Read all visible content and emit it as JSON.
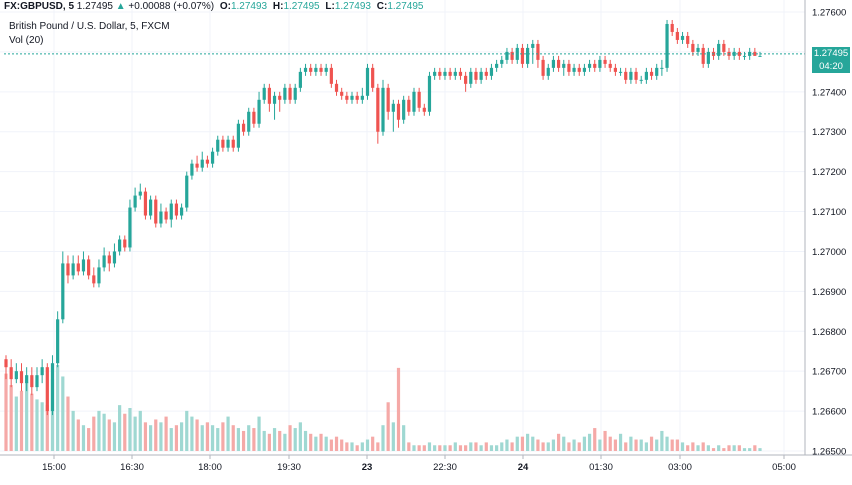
{
  "header": {
    "symbol": "FX:GBPUSD, 5",
    "last": "1.27495",
    "change_arrow": "▲",
    "change": "+0.00088 (+0.07%)",
    "o_label": "O:",
    "o_value": "1.27493",
    "h_label": "H:",
    "h_value": "1.27495",
    "l_label": "L:",
    "l_value": "1.27493",
    "c_label": "C:",
    "c_value": "1.27495"
  },
  "legend": {
    "title": "British Pound / U.S. Dollar, 5, FXCM",
    "volume": "Vol (20)"
  },
  "price_scale": {
    "last_price_label": "1.27495",
    "countdown_label": "04:20"
  },
  "colors": {
    "up": "#26a69a",
    "down": "#ef5350",
    "vol_up": "#9fd8d2",
    "vol_down": "#f5a9a7"
  },
  "chart_data": {
    "type": "candlestick",
    "y_range": [
      1.265,
      1.276
    ],
    "y_ticks": [
      "1.27600",
      "1.27500",
      "1.27400",
      "1.27300",
      "1.27200",
      "1.27100",
      "1.27000",
      "1.26900",
      "1.26800",
      "1.26700",
      "1.26600",
      "1.26500"
    ],
    "x_ticks": [
      "15:00",
      "16:30",
      "18:00",
      "19:30",
      "23",
      "22:30",
      "24",
      "01:30",
      "03:00",
      "05:00"
    ],
    "last_price": 1.27495,
    "interval": "5",
    "candles": [
      [
        1.2673,
        1.2671,
        1.2674,
        1.2668
      ],
      [
        1.2671,
        1.2668,
        1.2673,
        1.2666
      ],
      [
        1.2668,
        1.267,
        1.2672,
        1.2667
      ],
      [
        1.267,
        1.2667,
        1.2672,
        1.2665
      ],
      [
        1.2667,
        1.2669,
        1.2671,
        1.2665
      ],
      [
        1.2669,
        1.2666,
        1.2671,
        1.2664
      ],
      [
        1.2666,
        1.2669,
        1.2671,
        1.2665
      ],
      [
        1.2669,
        1.2671,
        1.2673,
        1.2667
      ],
      [
        1.2671,
        1.266,
        1.2672,
        1.2659
      ],
      [
        1.266,
        1.2672,
        1.2674,
        1.2659
      ],
      [
        1.2672,
        1.2683,
        1.2685,
        1.2671
      ],
      [
        1.2683,
        1.2697,
        1.27,
        1.2682
      ],
      [
        1.2697,
        1.2694,
        1.2699,
        1.2692
      ],
      [
        1.2694,
        1.2697,
        1.2699,
        1.2693
      ],
      [
        1.2697,
        1.2695,
        1.2699,
        1.2694
      ],
      [
        1.2695,
        1.2698,
        1.27,
        1.2694
      ],
      [
        1.2698,
        1.2694,
        1.2699,
        1.2693
      ],
      [
        1.2694,
        1.2692,
        1.2696,
        1.2691
      ],
      [
        1.2692,
        1.2696,
        1.2698,
        1.2691
      ],
      [
        1.2696,
        1.2699,
        1.2701,
        1.2695
      ],
      [
        1.2699,
        1.2697,
        1.27,
        1.2695
      ],
      [
        1.2697,
        1.27,
        1.2702,
        1.2696
      ],
      [
        1.27,
        1.2703,
        1.2704,
        1.2699
      ],
      [
        1.2703,
        1.2701,
        1.2704,
        1.27
      ],
      [
        1.2701,
        1.2711,
        1.2713,
        1.27
      ],
      [
        1.2711,
        1.2714,
        1.2716,
        1.271
      ],
      [
        1.2714,
        1.2715,
        1.2717,
        1.2713
      ],
      [
        1.2715,
        1.2709,
        1.2716,
        1.2708
      ],
      [
        1.2709,
        1.2713,
        1.2714,
        1.2708
      ],
      [
        1.2713,
        1.2707,
        1.2714,
        1.2706
      ],
      [
        1.2707,
        1.271,
        1.2712,
        1.2706
      ],
      [
        1.271,
        1.2708,
        1.2711,
        1.2707
      ],
      [
        1.2708,
        1.2712,
        1.2713,
        1.2706
      ],
      [
        1.2712,
        1.2709,
        1.2713,
        1.2708
      ],
      [
        1.2709,
        1.2711,
        1.2712,
        1.2708
      ],
      [
        1.2711,
        1.2719,
        1.272,
        1.271
      ],
      [
        1.2719,
        1.2722,
        1.2723,
        1.2718
      ],
      [
        1.2722,
        1.2721,
        1.2724,
        1.272
      ],
      [
        1.2721,
        1.2723,
        1.2725,
        1.272
      ],
      [
        1.2723,
        1.2722,
        1.2724,
        1.2721
      ],
      [
        1.2722,
        1.2725,
        1.2726,
        1.2721
      ],
      [
        1.2725,
        1.2728,
        1.2729,
        1.2724
      ],
      [
        1.2728,
        1.2726,
        1.2729,
        1.2725
      ],
      [
        1.2726,
        1.2728,
        1.2729,
        1.2725
      ],
      [
        1.2728,
        1.2726,
        1.2729,
        1.2725
      ],
      [
        1.2726,
        1.2732,
        1.2733,
        1.2725
      ],
      [
        1.2732,
        1.273,
        1.2733,
        1.2729
      ],
      [
        1.273,
        1.2735,
        1.2736,
        1.2729
      ],
      [
        1.2735,
        1.2732,
        1.2736,
        1.2731
      ],
      [
        1.2732,
        1.2738,
        1.274,
        1.2731
      ],
      [
        1.2738,
        1.2741,
        1.2742,
        1.2737
      ],
      [
        1.2741,
        1.2737,
        1.2742,
        1.2735
      ],
      [
        1.2737,
        1.2739,
        1.274,
        1.2733
      ],
      [
        1.2739,
        1.2738,
        1.274,
        1.2735
      ],
      [
        1.2738,
        1.2741,
        1.2742,
        1.2737
      ],
      [
        1.2741,
        1.2738,
        1.2742,
        1.2737
      ],
      [
        1.2738,
        1.2741,
        1.2742,
        1.2737
      ],
      [
        1.2741,
        1.2745,
        1.2746,
        1.274
      ],
      [
        1.2745,
        1.2746,
        1.2747,
        1.2744
      ],
      [
        1.2746,
        1.2745,
        1.2747,
        1.2744
      ],
      [
        1.2745,
        1.2746,
        1.2747,
        1.2744
      ],
      [
        1.2746,
        1.2745,
        1.2747,
        1.2744
      ],
      [
        1.2745,
        1.2746,
        1.2747,
        1.2744
      ],
      [
        1.2746,
        1.2742,
        1.2747,
        1.2741
      ],
      [
        1.2742,
        1.274,
        1.2743,
        1.2739
      ],
      [
        1.274,
        1.2739,
        1.2741,
        1.2738
      ],
      [
        1.2739,
        1.2738,
        1.274,
        1.2737
      ],
      [
        1.2738,
        1.2739,
        1.274,
        1.2737
      ],
      [
        1.2739,
        1.2738,
        1.274,
        1.2737
      ],
      [
        1.2738,
        1.2739,
        1.2741,
        1.2737
      ],
      [
        1.2739,
        1.2746,
        1.2747,
        1.2738
      ],
      [
        1.2746,
        1.2741,
        1.2747,
        1.274
      ],
      [
        1.2741,
        1.273,
        1.2742,
        1.2727
      ],
      [
        1.273,
        1.2741,
        1.2743,
        1.2729
      ],
      [
        1.2741,
        1.2735,
        1.2742,
        1.2733
      ],
      [
        1.2735,
        1.2737,
        1.2738,
        1.273
      ],
      [
        1.2737,
        1.2733,
        1.2738,
        1.2731
      ],
      [
        1.2733,
        1.2738,
        1.2739,
        1.2732
      ],
      [
        1.2738,
        1.2735,
        1.2739,
        1.2734
      ],
      [
        1.2735,
        1.274,
        1.2741,
        1.2734
      ],
      [
        1.274,
        1.2736,
        1.2741,
        1.2735
      ],
      [
        1.2736,
        1.2735,
        1.2737,
        1.2734
      ],
      [
        1.2735,
        1.2744,
        1.2745,
        1.2734
      ],
      [
        1.2744,
        1.2745,
        1.2746,
        1.2743
      ],
      [
        1.2745,
        1.2744,
        1.2746,
        1.2743
      ],
      [
        1.2744,
        1.2745,
        1.2746,
        1.2743
      ],
      [
        1.2745,
        1.2744,
        1.2746,
        1.2743
      ],
      [
        1.2744,
        1.2745,
        1.2746,
        1.2743
      ],
      [
        1.2745,
        1.2744,
        1.2746,
        1.2743
      ],
      [
        1.2744,
        1.2742,
        1.2745,
        1.274
      ],
      [
        1.2742,
        1.2745,
        1.2746,
        1.2741
      ],
      [
        1.2745,
        1.2743,
        1.2746,
        1.2742
      ],
      [
        1.2743,
        1.2745,
        1.2746,
        1.2742
      ],
      [
        1.2745,
        1.2744,
        1.2746,
        1.2743
      ],
      [
        1.2744,
        1.2746,
        1.2747,
        1.2743
      ],
      [
        1.2746,
        1.2747,
        1.2748,
        1.2745
      ],
      [
        1.2747,
        1.2748,
        1.2749,
        1.2746
      ],
      [
        1.2748,
        1.275,
        1.2751,
        1.2747
      ],
      [
        1.275,
        1.2748,
        1.2751,
        1.2747
      ],
      [
        1.2748,
        1.2751,
        1.2752,
        1.2747
      ],
      [
        1.2751,
        1.2747,
        1.2752,
        1.2746
      ],
      [
        1.2747,
        1.2751,
        1.2752,
        1.2746
      ],
      [
        1.2751,
        1.2752,
        1.2753,
        1.2747
      ],
      [
        1.2752,
        1.2748,
        1.2753,
        1.2746
      ],
      [
        1.2748,
        1.2744,
        1.2749,
        1.2743
      ],
      [
        1.2744,
        1.2746,
        1.2747,
        1.2743
      ],
      [
        1.2746,
        1.2748,
        1.2749,
        1.2745
      ],
      [
        1.2748,
        1.2746,
        1.2749,
        1.2745
      ],
      [
        1.2746,
        1.2747,
        1.2748,
        1.2744
      ],
      [
        1.2747,
        1.2745,
        1.2748,
        1.2744
      ],
      [
        1.2745,
        1.2746,
        1.2747,
        1.2744
      ],
      [
        1.2746,
        1.2745,
        1.2747,
        1.2744
      ],
      [
        1.2745,
        1.2746,
        1.2747,
        1.2744
      ],
      [
        1.2746,
        1.2747,
        1.2748,
        1.2745
      ],
      [
        1.2747,
        1.2746,
        1.2748,
        1.2745
      ],
      [
        1.2746,
        1.2748,
        1.2749,
        1.2745
      ],
      [
        1.2748,
        1.2747,
        1.2749,
        1.2746
      ],
      [
        1.2747,
        1.2746,
        1.2748,
        1.2745
      ],
      [
        1.2746,
        1.2745,
        1.2747,
        1.2744
      ],
      [
        1.2745,
        1.2745,
        1.2746,
        1.2744
      ],
      [
        1.2745,
        1.2743,
        1.2746,
        1.2742
      ],
      [
        1.2743,
        1.2745,
        1.2746,
        1.2742
      ],
      [
        1.2745,
        1.2743,
        1.2746,
        1.2742
      ],
      [
        1.2743,
        1.2743,
        1.2744,
        1.2742
      ],
      [
        1.2743,
        1.2745,
        1.2746,
        1.2742
      ],
      [
        1.2745,
        1.2744,
        1.2746,
        1.2743
      ],
      [
        1.2744,
        1.2746,
        1.2747,
        1.2743
      ],
      [
        1.2746,
        1.2746,
        1.2748,
        1.2744
      ],
      [
        1.2746,
        1.2757,
        1.2758,
        1.2745
      ],
      [
        1.2757,
        1.2755,
        1.2758,
        1.2754
      ],
      [
        1.2755,
        1.2753,
        1.2756,
        1.2752
      ],
      [
        1.2753,
        1.2754,
        1.2755,
        1.2752
      ],
      [
        1.2754,
        1.2752,
        1.2755,
        1.2751
      ],
      [
        1.2752,
        1.275,
        1.2753,
        1.2749
      ],
      [
        1.275,
        1.2751,
        1.2752,
        1.2749
      ],
      [
        1.2751,
        1.2747,
        1.2752,
        1.2746
      ],
      [
        1.2747,
        1.275,
        1.2751,
        1.2746
      ],
      [
        1.275,
        1.2749,
        1.2751,
        1.2748
      ],
      [
        1.2749,
        1.2752,
        1.2753,
        1.2748
      ],
      [
        1.2752,
        1.275,
        1.2753,
        1.2749
      ],
      [
        1.275,
        1.2749,
        1.2751,
        1.2748
      ],
      [
        1.2749,
        1.275,
        1.2751,
        1.2748
      ],
      [
        1.275,
        1.2749,
        1.2751,
        1.2748
      ],
      [
        1.2749,
        1.2749,
        1.275,
        1.2748
      ],
      [
        1.2749,
        1.275,
        1.2751,
        1.2748
      ],
      [
        1.275,
        1.2749,
        1.2751,
        1.2749
      ],
      [
        1.2749,
        1.2749,
        1.275,
        1.2749
      ]
    ],
    "volumes": [
      27,
      23,
      19,
      21,
      24,
      20,
      18,
      17,
      16,
      25,
      30,
      26,
      19,
      14,
      11,
      9,
      8,
      12,
      14,
      13,
      11,
      10,
      16,
      13,
      15,
      12,
      14,
      10,
      9,
      11,
      10,
      12,
      8,
      9,
      10,
      14,
      12,
      11,
      9,
      10,
      9,
      8,
      10,
      12,
      9,
      8,
      7,
      9,
      8,
      12,
      7,
      6,
      8,
      7,
      6,
      9,
      8,
      10,
      7,
      6,
      5,
      6,
      5,
      4,
      5,
      4,
      3,
      3,
      2,
      3,
      4,
      5,
      3,
      9,
      17,
      10,
      29,
      9,
      3,
      2,
      2,
      2,
      3,
      2,
      2,
      2,
      2,
      3,
      2,
      2,
      3,
      3,
      2,
      3,
      2,
      2,
      3,
      4,
      3,
      5,
      5,
      6,
      5,
      4,
      3,
      3,
      4,
      6,
      5,
      3,
      4,
      3,
      5,
      6,
      8,
      4,
      7,
      5,
      4,
      6,
      3,
      5,
      4,
      4,
      3,
      5,
      4,
      7,
      5,
      4,
      4,
      3,
      2,
      3,
      2,
      3,
      2,
      1,
      2,
      1,
      2,
      2,
      2,
      1,
      1,
      2,
      1,
      1,
      1
    ]
  }
}
